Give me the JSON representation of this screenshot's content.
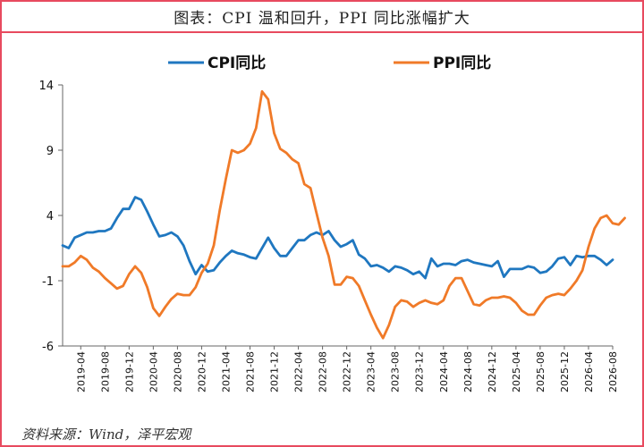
{
  "header": {
    "title": "图表：CPI 温和回升，PPI 同比涨幅扩大"
  },
  "footer": {
    "source": "资料来源：Wind，泽平宏观"
  },
  "chart_data": {
    "type": "line",
    "title": "",
    "xlabel": "",
    "ylabel": "",
    "ylim": [
      -6,
      14
    ],
    "y_ticks": [
      14,
      9,
      4,
      -1,
      -6
    ],
    "x_tick_labels": [
      "2019-04",
      "2019-08",
      "2019-12",
      "2020-04",
      "2020-08",
      "2020-12",
      "2021-04",
      "2021-08",
      "2021-12",
      "2022-04",
      "2022-08",
      "2022-12",
      "2023-04",
      "2023-08",
      "2023-12",
      "2024-04",
      "2024-08",
      "2024-12",
      "2025-04",
      "2025-08",
      "2025-12",
      "2026-04",
      "2026-08"
    ],
    "x_start": "2019-01",
    "grid": false,
    "legend": "top",
    "series": [
      {
        "name": "CPI同比",
        "color": "#1f77c0",
        "values": [
          1.7,
          1.5,
          2.3,
          2.5,
          2.7,
          2.7,
          2.8,
          2.8,
          3.0,
          3.8,
          4.5,
          4.5,
          5.4,
          5.2,
          4.3,
          3.3,
          2.4,
          2.5,
          2.7,
          2.4,
          1.7,
          0.5,
          -0.5,
          0.2,
          -0.3,
          -0.2,
          0.4,
          0.9,
          1.3,
          1.1,
          1.0,
          0.8,
          0.7,
          1.5,
          2.3,
          1.5,
          0.9,
          0.9,
          1.5,
          2.1,
          2.1,
          2.5,
          2.7,
          2.5,
          2.8,
          2.1,
          1.6,
          1.8,
          2.1,
          1.0,
          0.7,
          0.1,
          0.2,
          0.0,
          -0.3,
          0.1,
          0.0,
          -0.2,
          -0.5,
          -0.3,
          -0.8,
          0.7,
          0.1,
          0.3,
          0.3,
          0.2,
          0.5,
          0.6,
          0.4,
          0.3,
          0.2,
          0.1,
          0.5,
          -0.7,
          -0.1,
          -0.1,
          -0.1,
          0.1,
          0.0,
          -0.4,
          -0.3,
          0.1,
          0.7,
          0.8,
          0.2,
          0.9,
          0.8,
          0.9,
          0.9,
          0.6,
          0.2,
          0.6
        ]
      },
      {
        "name": "PPI同比",
        "color": "#f07a28",
        "values": [
          0.1,
          0.1,
          0.4,
          0.9,
          0.6,
          0.0,
          -0.3,
          -0.8,
          -1.2,
          -1.6,
          -1.4,
          -0.5,
          0.1,
          -0.4,
          -1.5,
          -3.1,
          -3.7,
          -3.0,
          -2.4,
          -2.0,
          -2.1,
          -2.1,
          -1.5,
          -0.4,
          0.3,
          1.7,
          4.4,
          6.8,
          9.0,
          8.8,
          9.0,
          9.5,
          10.7,
          13.5,
          12.9,
          10.3,
          9.1,
          8.8,
          8.3,
          8.0,
          6.4,
          6.1,
          4.2,
          2.3,
          0.9,
          -1.3,
          -1.3,
          -0.7,
          -0.8,
          -1.4,
          -2.5,
          -3.6,
          -4.6,
          -5.4,
          -4.4,
          -3.0,
          -2.5,
          -2.6,
          -3.0,
          -2.7,
          -2.5,
          -2.7,
          -2.8,
          -2.5,
          -1.4,
          -0.8,
          -0.8,
          -1.8,
          -2.8,
          -2.9,
          -2.5,
          -2.3,
          -2.3,
          -2.2,
          -2.3,
          -2.7,
          -3.3,
          -3.6,
          -3.6,
          -2.9,
          -2.3,
          -2.1,
          -2.0,
          -2.1,
          -1.6,
          -1.0,
          -0.2,
          1.6,
          3.0,
          3.8,
          4.0,
          3.4,
          3.3,
          3.8
        ]
      }
    ]
  }
}
